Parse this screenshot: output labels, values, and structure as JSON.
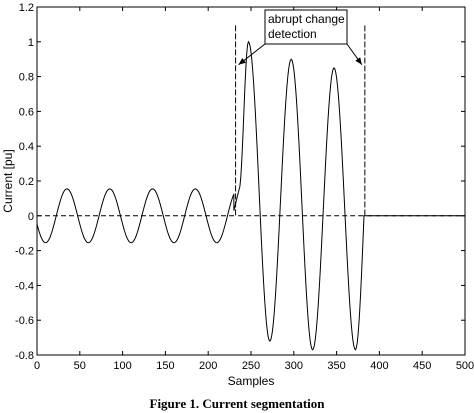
{
  "chart_data": {
    "type": "line",
    "title": "",
    "xlabel": "Samples",
    "ylabel": "Current [pu]",
    "xlim": [
      0,
      500
    ],
    "ylim": [
      -0.8,
      1.2
    ],
    "xticks": [
      "0",
      "50",
      "100",
      "150",
      "200",
      "250",
      "300",
      "350",
      "400",
      "450",
      "500"
    ],
    "yticks": [
      "-0.8",
      "-0.6",
      "-0.4",
      "-0.2",
      "0",
      "0.2",
      "0.4",
      "0.6",
      "0.8",
      "1",
      "1.2"
    ],
    "grid": false,
    "series": [
      {
        "style": "solid",
        "segments": [
          {
            "x_start": 0,
            "x_end": 230,
            "period": 50,
            "amplitude": 0.155,
            "peak_x": 35
          },
          {
            "x_start": 230,
            "x_end": 236,
            "ramp": [
              0.03,
              0.15
            ]
          },
          {
            "x_start": 236,
            "x_end": 382,
            "period": 50,
            "peaks": [
              [
                247,
                1.0
              ],
              [
                272,
                -0.72
              ],
              [
                297,
                0.9
              ],
              [
                322,
                -0.77
              ],
              [
                347,
                0.85
              ],
              [
                372,
                -0.77
              ]
            ]
          },
          {
            "x_start": 382,
            "x_end": 500,
            "value": 0
          }
        ]
      },
      {
        "style": "dashed",
        "points": [
          [
            0,
            0
          ],
          [
            232,
            0
          ],
          [
            232,
            1.1
          ],
          [
            232,
            0
          ],
          [
            383,
            0
          ],
          [
            383,
            1.1
          ],
          [
            383,
            0
          ],
          [
            500,
            0
          ]
        ]
      }
    ],
    "annotations": [
      {
        "text_lines": [
          "abrupt change",
          "detection"
        ],
        "arrows_to_x": [
          232,
          383
        ],
        "arrow_y": 0.88
      }
    ]
  },
  "caption": "Figure 1. Current segmentation"
}
